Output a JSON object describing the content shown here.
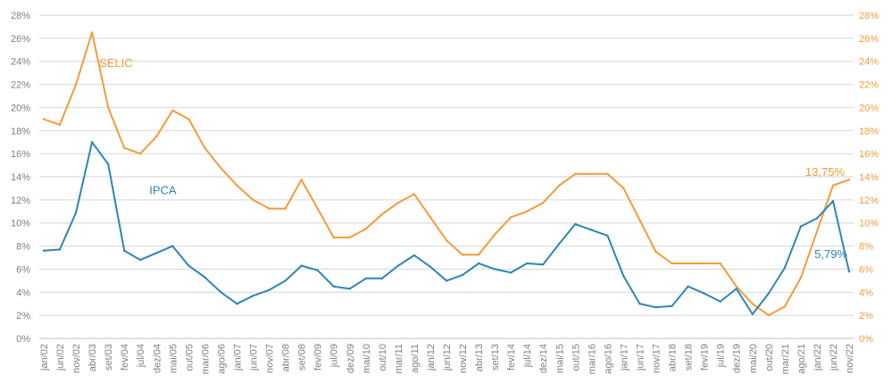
{
  "chart_data": {
    "type": "line",
    "title": "",
    "xlabel": "",
    "ylabel": "",
    "ylim": [
      0,
      28
    ],
    "yticks": [
      "0%",
      "2%",
      "4%",
      "6%",
      "8%",
      "10%",
      "12%",
      "14%",
      "16%",
      "18%",
      "20%",
      "22%",
      "24%",
      "26%",
      "28%"
    ],
    "right_axis": true,
    "grid": true,
    "legend": "none",
    "x_tick_labels": [
      "jan/02",
      "jun/02",
      "nov/02",
      "abr/03",
      "set/03",
      "fev/04",
      "jul/04",
      "dez/04",
      "mai/05",
      "out/05",
      "mar/06",
      "ago/06",
      "jan/07",
      "jun/07",
      "nov/07",
      "abr/08",
      "set/08",
      "fev/09",
      "jul/09",
      "dez/09",
      "mai/10",
      "out/10",
      "mar/11",
      "ago/11",
      "jan/12",
      "jun/12",
      "nov/12",
      "abr/13",
      "set/13",
      "fev/14",
      "jul/14",
      "dez/14",
      "mai/15",
      "out/15",
      "mar/16",
      "ago/16",
      "jan/17",
      "jun/17",
      "nov/17",
      "abr/18",
      "set/18",
      "fev/19",
      "jul/19",
      "dez/19",
      "mai/20",
      "out/20",
      "mar/21",
      "ago/21",
      "jan/22",
      "jun/22",
      "nov/22"
    ],
    "x": [
      "jan/02",
      "jun/02",
      "nov/02",
      "abr/03",
      "set/03",
      "fev/04",
      "jul/04",
      "dez/04",
      "mai/05",
      "out/05",
      "mar/06",
      "ago/06",
      "jan/07",
      "jun/07",
      "nov/07",
      "abr/08",
      "set/08",
      "fev/09",
      "jul/09",
      "dez/09",
      "mai/10",
      "out/10",
      "mar/11",
      "ago/11",
      "jan/12",
      "jun/12",
      "nov/12",
      "abr/13",
      "set/13",
      "fev/14",
      "jul/14",
      "dez/14",
      "mai/15",
      "out/15",
      "mar/16",
      "ago/16",
      "jan/17",
      "jun/17",
      "nov/17",
      "abr/18",
      "set/18",
      "fev/19",
      "jul/19",
      "dez/19",
      "mai/20",
      "out/20",
      "mar/21",
      "ago/21",
      "jan/22",
      "jun/22",
      "nov/22"
    ],
    "series": [
      {
        "name": "SELIC",
        "color": "#f39c3b",
        "values": [
          19.0,
          18.5,
          22.0,
          26.5,
          20.0,
          16.5,
          16.0,
          17.5,
          19.75,
          19.0,
          16.5,
          14.75,
          13.25,
          12.0,
          11.25,
          11.25,
          13.75,
          11.25,
          8.75,
          8.75,
          9.5,
          10.75,
          11.75,
          12.5,
          10.5,
          8.5,
          7.25,
          7.25,
          9.0,
          10.5,
          11.0,
          11.75,
          13.25,
          14.25,
          14.25,
          14.25,
          13.0,
          10.25,
          7.5,
          6.5,
          6.5,
          6.5,
          6.5,
          4.5,
          3.0,
          2.0,
          2.75,
          5.25,
          9.25,
          13.25,
          13.75
        ]
      },
      {
        "name": "IPCA",
        "color": "#2e86b3",
        "values": [
          7.6,
          7.7,
          10.9,
          17.0,
          15.1,
          7.6,
          6.8,
          7.4,
          8.0,
          6.3,
          5.3,
          4.0,
          3.0,
          3.7,
          4.2,
          5.0,
          6.3,
          5.9,
          4.5,
          4.3,
          5.2,
          5.2,
          6.3,
          7.2,
          6.2,
          5.0,
          5.5,
          6.5,
          6.0,
          5.7,
          6.5,
          6.4,
          8.2,
          9.9,
          9.4,
          8.9,
          5.4,
          3.0,
          2.7,
          2.8,
          4.5,
          3.9,
          3.2,
          4.3,
          2.1,
          3.9,
          6.1,
          9.7,
          10.4,
          11.9,
          5.79
        ]
      }
    ],
    "annotations": [
      {
        "text": "SELIC",
        "series": "SELIC"
      },
      {
        "text": "IPCA",
        "series": "IPCA"
      },
      {
        "text": "13,75%",
        "series": "SELIC"
      },
      {
        "text": "5,79%",
        "series": "IPCA"
      }
    ],
    "colors": {
      "selic": "#f39c3b",
      "ipca": "#2e86b3",
      "grid": "#d6d6d6",
      "axis_text": "#7f7f7f"
    }
  }
}
